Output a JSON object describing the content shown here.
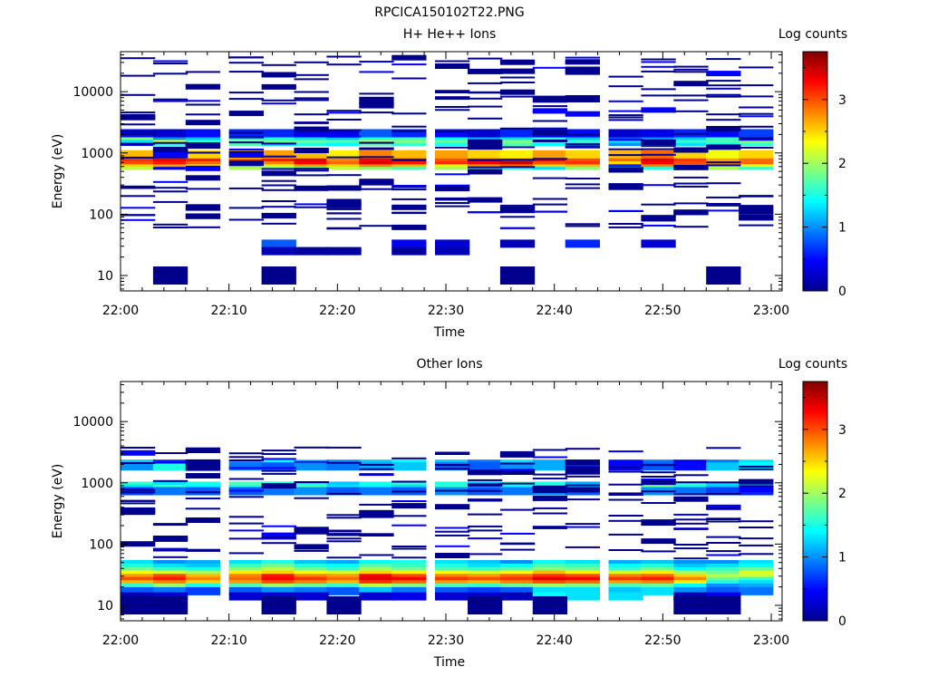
{
  "figure": {
    "title": "RPCICA150102T22.PNG"
  },
  "chart_data": [
    {
      "type": "heatmap",
      "title": "H+ He++ Ions",
      "xlabel": "Time",
      "ylabel": "Energy (eV)",
      "colorbar_label": "Log counts",
      "xlim": [
        "22:00",
        "23:01"
      ],
      "x_tick_labels": [
        "22:00",
        "22:10",
        "22:20",
        "22:30",
        "22:40",
        "22:50",
        "23:00"
      ],
      "y_scale": "log",
      "ylim": [
        5.6,
        45000
      ],
      "y_tick_labels": [
        "10",
        "100",
        "1000",
        "10000"
      ],
      "colorbar_range": [
        0,
        3.75
      ],
      "colorbar_ticks": [
        "0",
        "1",
        "2",
        "3"
      ],
      "time_bins": [
        "22:00",
        "22:03",
        "22:06",
        "22:10",
        "22:13",
        "22:16",
        "22:19",
        "22:22",
        "22:25",
        "22:29",
        "22:32",
        "22:35",
        "22:38",
        "22:41",
        "22:45",
        "22:48",
        "22:51",
        "22:54",
        "22:57"
      ],
      "energy_bins_eV": [
        1520,
        1700,
        1900,
        2100,
        620,
        690,
        760,
        850,
        950,
        33,
        25,
        10
      ],
      "log_counts": [
        [
          0.5,
          1.6,
          1.4,
          1.7,
          1.3,
          1.5,
          1.4,
          1.8,
          1.6,
          1.5,
          1.3,
          1.7,
          1.4,
          1.2,
          1.0,
          1.5,
          1.3,
          1.4,
          1.6
        ],
        [
          1.3,
          2.2,
          1.6,
          2.0,
          1.8,
          1.8,
          1.7,
          2.1,
          1.9,
          1.8,
          1.5,
          1.9,
          1.7,
          1.6,
          1.3,
          1.8,
          1.6,
          1.7,
          1.9
        ],
        [
          1.9,
          1.0,
          1.2,
          1.4,
          1.5,
          1.3,
          1.2,
          1.5,
          1.6,
          1.4,
          1.1,
          1.3,
          1.5,
          1.2,
          0.8,
          1.0,
          1.2,
          1.6,
          1.4
        ],
        [
          0.5,
          0.3,
          0.5,
          0.6,
          0.6,
          0.4,
          0.4,
          0.8,
          0.6,
          0.5,
          0.3,
          0.6,
          0.4,
          0.5,
          0.3,
          0.4,
          0.6,
          0.5,
          0.7
        ],
        [
          2.1,
          0.4,
          1.7,
          2.0,
          1.8,
          1.7,
          2.1,
          1.9,
          1.7,
          2.0,
          1.8,
          1.6,
          1.3,
          1.9,
          1.7,
          1.5,
          1.8,
          2.0,
          1.6
        ],
        [
          2.5,
          2.7,
          2.4,
          2.6,
          2.4,
          2.7,
          2.5,
          2.8,
          2.6,
          2.4,
          2.7,
          2.9,
          2.5,
          2.6,
          0.6,
          2.8,
          2.7,
          2.2,
          2.3
        ],
        [
          3.0,
          3.2,
          2.9,
          3.1,
          2.8,
          3.3,
          2.9,
          3.4,
          3.2,
          3.1,
          3.3,
          3.5,
          3.0,
          3.1,
          2.5,
          3.3,
          3.0,
          2.8,
          2.9
        ],
        [
          3.1,
          3.3,
          3.2,
          3.0,
          3.2,
          3.4,
          2.8,
          3.3,
          3.4,
          3.0,
          3.2,
          3.1,
          3.3,
          3.0,
          2.9,
          3.4,
          3.1,
          2.7,
          2.9
        ],
        [
          2.6,
          2.9,
          2.5,
          2.5,
          2.7,
          2.6,
          2.4,
          2.8,
          2.6,
          2.7,
          2.5,
          2.4,
          2.7,
          2.5,
          2.6,
          2.9,
          2.5,
          2.3,
          2.5
        ],
        [
          0,
          0,
          0,
          0,
          0.8,
          0,
          0,
          0,
          0.4,
          0.3,
          0,
          0.2,
          0,
          0.6,
          0,
          0.3,
          0,
          0,
          0
        ],
        [
          0,
          0,
          0,
          0,
          0.2,
          0.1,
          0.1,
          0,
          0.1,
          0.2,
          0,
          0,
          0,
          0,
          0,
          0,
          0,
          0,
          0
        ],
        [
          0,
          0.05,
          0,
          0,
          0.05,
          0,
          0,
          0,
          0,
          0,
          0,
          0.05,
          0,
          0,
          0,
          0,
          0,
          0.05,
          0
        ]
      ],
      "sparse_counts_note": ""
    },
    {
      "type": "heatmap",
      "title": "Other Ions",
      "xlabel": "Time",
      "ylabel": "Energy (eV)",
      "colorbar_label": "Log counts",
      "xlim": [
        "22:00",
        "23:01"
      ],
      "x_tick_labels": [
        "22:00",
        "22:10",
        "22:20",
        "22:30",
        "22:40",
        "22:50",
        "23:00"
      ],
      "y_scale": "log",
      "ylim": [
        5.6,
        45000
      ],
      "y_tick_labels": [
        "10",
        "100",
        "1000",
        "10000"
      ],
      "colorbar_range": [
        0,
        3.75
      ],
      "colorbar_ticks": [
        "0",
        "1",
        "2",
        "3"
      ],
      "time_bins": [
        "22:00",
        "22:03",
        "22:06",
        "22:10",
        "22:13",
        "22:16",
        "22:19",
        "22:22",
        "22:25",
        "22:29",
        "22:32",
        "22:35",
        "22:38",
        "22:41",
        "22:45",
        "22:48",
        "22:51",
        "22:54",
        "22:57"
      ],
      "energy_bins_eV": [
        47,
        41,
        36,
        32,
        28,
        25,
        22,
        19.5,
        17,
        2050,
        1850,
        900,
        800,
        730,
        14,
        10
      ],
      "log_counts": [
        [
          1.3,
          1.0,
          1.1,
          1.3,
          1.5,
          1.2,
          1.1,
          1.4,
          1.5,
          1.3,
          1.2,
          1.0,
          1.4,
          1.3,
          1.1,
          1.2,
          1.0,
          1.0,
          1.3
        ],
        [
          1.5,
          1.3,
          1.2,
          1.6,
          1.8,
          1.5,
          1.4,
          1.7,
          1.6,
          1.5,
          1.3,
          1.4,
          1.7,
          1.6,
          1.4,
          1.5,
          1.2,
          1.3,
          1.4
        ],
        [
          1.8,
          1.6,
          1.5,
          1.9,
          2.1,
          1.8,
          1.6,
          2.0,
          1.8,
          1.7,
          1.6,
          1.7,
          1.9,
          1.8,
          1.6,
          1.8,
          1.4,
          1.6,
          1.8
        ],
        [
          2.3,
          2.2,
          2.0,
          2.4,
          2.5,
          2.3,
          2.2,
          2.5,
          2.4,
          2.3,
          2.2,
          2.3,
          2.6,
          2.4,
          2.2,
          2.4,
          2.0,
          1.8,
          2.2
        ],
        [
          2.7,
          3.0,
          2.6,
          2.8,
          3.2,
          2.8,
          2.7,
          3.3,
          3.0,
          2.8,
          2.7,
          2.9,
          3.1,
          3.0,
          2.8,
          2.9,
          2.5,
          2.1,
          2.2
        ],
        [
          3.0,
          3.2,
          2.8,
          2.9,
          3.3,
          3.1,
          2.9,
          3.4,
          3.3,
          3.1,
          3.0,
          3.1,
          3.4,
          3.3,
          3.1,
          3.2,
          2.8,
          1.8,
          1.6
        ],
        [
          2.6,
          2.8,
          2.5,
          2.7,
          3.0,
          2.8,
          2.6,
          3.1,
          2.9,
          2.7,
          2.6,
          2.8,
          3.0,
          2.9,
          2.7,
          2.8,
          2.4,
          1.5,
          1.3
        ],
        [
          1.6,
          2.0,
          1.5,
          1.7,
          2.0,
          1.8,
          1.6,
          2.1,
          1.9,
          1.7,
          1.6,
          1.8,
          2.0,
          1.9,
          1.7,
          1.8,
          1.4,
          1.0,
          1.1
        ],
        [
          0.8,
          0.9,
          0.7,
          0.8,
          1.0,
          0.9,
          0.8,
          1.2,
          0.9,
          0.8,
          0.7,
          0.8,
          1.3,
          1.3,
          1.2,
          1.3,
          1.0,
          0.8,
          0.9
        ],
        [
          1.2,
          0.6,
          0.4,
          1.1,
          1.4,
          1.3,
          1.0,
          1.2,
          1.4,
          1.2,
          0.9,
          1.3,
          1.1,
          0.7,
          0.5,
          0.9,
          0.4,
          0.9,
          1.3
        ],
        [
          1.0,
          1.5,
          1.1,
          0.9,
          0.8,
          1.0,
          0.9,
          1.1,
          1.2,
          0.9,
          0.8,
          1.0,
          1.1,
          0.6,
          0.4,
          0.8,
          0.5,
          1.2,
          1.4
        ],
        [
          1.6,
          1.3,
          1.5,
          1.7,
          1.5,
          1.4,
          1.2,
          1.5,
          1.6,
          1.5,
          1.2,
          1.7,
          1.5,
          1.1,
          0.0,
          1.5,
          1.6,
          1.3,
          1.5
        ],
        [
          1.3,
          1.6,
          1.4,
          1.5,
          1.4,
          1.7,
          1.3,
          1.4,
          1.3,
          1.6,
          1.2,
          1.4,
          1.6,
          1.4,
          0.0,
          1.8,
          1.5,
          1.2,
          1.1
        ],
        [
          0.7,
          0.9,
          0.8,
          0.8,
          0.9,
          1.0,
          0.8,
          0.9,
          0.8,
          1.0,
          0.8,
          0.9,
          1.0,
          0.8,
          0.0,
          1.0,
          0.9,
          0.7,
          0.6
        ],
        [
          0.2,
          0.3,
          0.0,
          0.3,
          0.3,
          0.3,
          0.0,
          0.3,
          0.4,
          0.3,
          0.3,
          0.2,
          1.4,
          1.3,
          1.3,
          0.0,
          0.2,
          0.4,
          0.0
        ],
        [
          0.05,
          0.05,
          0,
          0,
          0.05,
          0,
          0.05,
          0,
          0,
          0,
          0.05,
          0,
          0.05,
          0,
          0,
          0,
          0.05,
          0.05,
          0
        ]
      ],
      "sparse_counts_note": ""
    }
  ]
}
